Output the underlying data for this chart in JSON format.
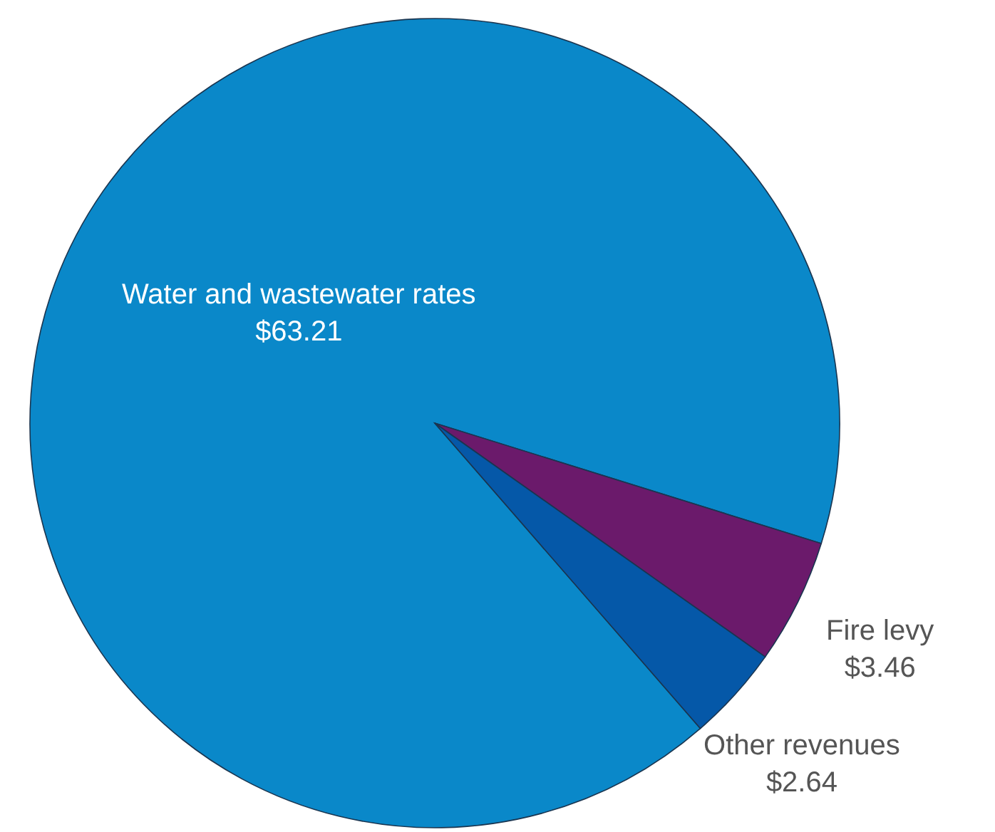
{
  "chart_data": {
    "type": "pie",
    "categories": [
      "Water and wastewater rates",
      "Fire levy",
      "Other revenues"
    ],
    "values": [
      63.21,
      3.46,
      2.64
    ],
    "value_labels": [
      "$63.21",
      "$3.46",
      "$2.64"
    ],
    "colors": [
      "#0a88c9",
      "#6b1a6b",
      "#0558a8"
    ]
  }
}
